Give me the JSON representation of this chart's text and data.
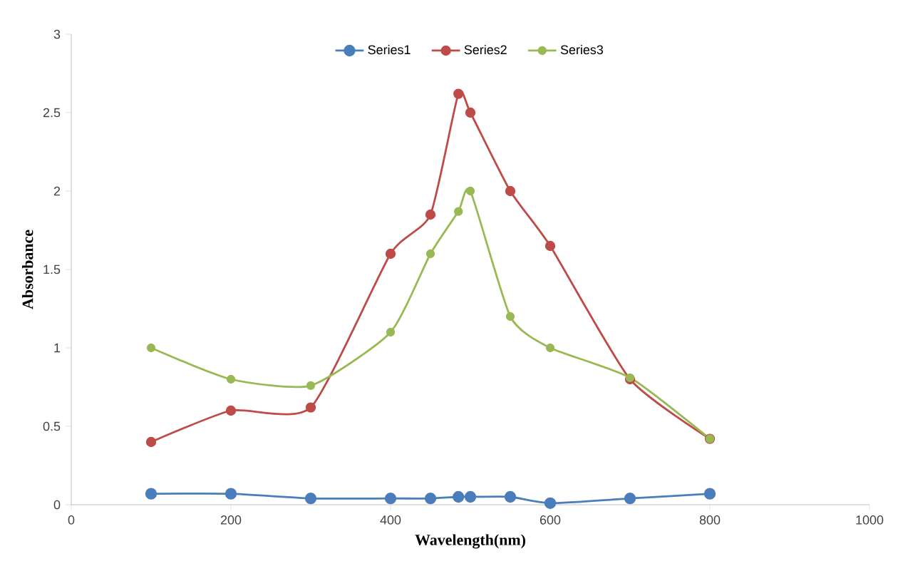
{
  "chart_data": {
    "type": "line",
    "xlabel": "Wavelength(nm)",
    "ylabel": "Absorbance",
    "x": [
      100,
      200,
      300,
      400,
      450,
      485,
      500,
      550,
      600,
      700,
      800
    ],
    "series": [
      {
        "name": "Series1",
        "color": "#4a7ebb",
        "values": [
          0.07,
          0.07,
          0.04,
          0.04,
          0.04,
          0.05,
          0.05,
          0.05,
          0.01,
          0.04,
          0.07
        ]
      },
      {
        "name": "Series2",
        "color": "#be4b48",
        "values": [
          0.4,
          0.6,
          0.62,
          1.6,
          1.85,
          2.62,
          2.5,
          2.0,
          1.65,
          0.8,
          0.42
        ]
      },
      {
        "name": "Series3",
        "color": "#98b954",
        "values": [
          1.0,
          0.8,
          0.76,
          1.1,
          1.6,
          1.87,
          2.0,
          1.2,
          1.0,
          0.81,
          0.42
        ]
      }
    ],
    "xlim": [
      0,
      1000
    ],
    "xticks": [
      0,
      200,
      400,
      600,
      800,
      1000
    ],
    "ylim": [
      0,
      3
    ],
    "yticks": [
      0,
      0.5,
      1,
      1.5,
      2,
      2.5,
      3
    ],
    "grid": false,
    "legend": "top",
    "marker": "circle",
    "line_style": "solid"
  }
}
